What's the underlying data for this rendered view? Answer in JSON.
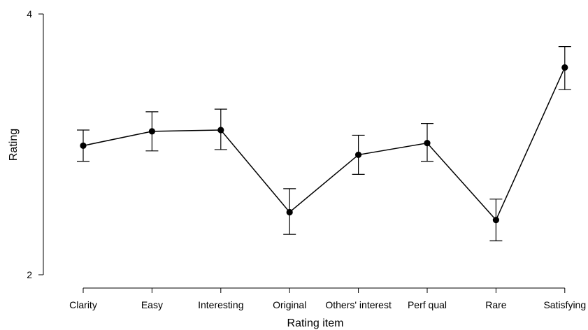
{
  "chart_data": {
    "type": "line",
    "categories": [
      "Clarity",
      "Easy",
      "Interesting",
      "Original",
      "Others' interest",
      "Perf qual",
      "Rare",
      "Satisfying"
    ],
    "values": [
      2.99,
      3.1,
      3.11,
      2.48,
      2.92,
      3.01,
      2.42,
      3.59
    ],
    "error_low": [
      2.87,
      2.95,
      2.96,
      2.31,
      2.77,
      2.87,
      2.26,
      3.42
    ],
    "error_high": [
      3.11,
      3.25,
      3.27,
      2.66,
      3.07,
      3.16,
      2.58,
      3.75
    ],
    "ylim": [
      2,
      4
    ],
    "yticks": [
      "2",
      "4"
    ],
    "xlabel": "Rating item",
    "ylabel": "Rating",
    "grid": false,
    "legend": "none",
    "colors": {
      "line": "#000000",
      "marker": "#000000"
    }
  }
}
